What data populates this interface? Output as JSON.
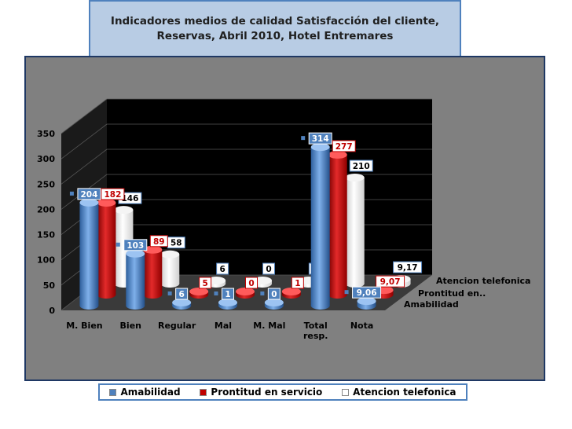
{
  "title": "Indicadores medios de calidad  Satisfacción del cliente, Reservas, Abril 2010,  Hotel Entremares",
  "chart_data": {
    "type": "bar",
    "categories": [
      "M. Bien",
      "Bien",
      "Regular",
      "Mal",
      "M. Mal",
      "Total resp.",
      "Nota"
    ],
    "series": [
      {
        "name": "Amabilidad",
        "values": [
          204,
          103,
          6,
          1,
          0,
          314,
          9.06
        ],
        "labels": [
          "204",
          "103",
          "6",
          "1",
          "0",
          "314",
          "9,06"
        ],
        "color": "#4f81bd"
      },
      {
        "name": "Prontitud en servicio",
        "values": [
          182,
          89,
          5,
          0,
          1,
          277,
          9.07
        ],
        "labels": [
          "182",
          "89",
          "5",
          "0",
          "1",
          "277",
          "9,07"
        ],
        "color": "#c00000"
      },
      {
        "name": "Atencion telefonica",
        "values": [
          146,
          58,
          6,
          0,
          0,
          210,
          9.17
        ],
        "labels": [
          "146",
          "58",
          "6",
          "0",
          "0",
          "210",
          "9,17"
        ],
        "color": "#ffffff"
      }
    ],
    "depth_axis_labels": [
      "Atencion telefonica",
      "Prontitud en..",
      "Amabilidad"
    ],
    "yticks": [
      0,
      50,
      100,
      150,
      200,
      250,
      300,
      350
    ],
    "ylim": [
      0,
      350
    ],
    "legend_labels": [
      "Amabilidad",
      "Prontitud en servicio",
      "Atencion telefonica"
    ],
    "legend_position": "bottom",
    "grid": true
  }
}
